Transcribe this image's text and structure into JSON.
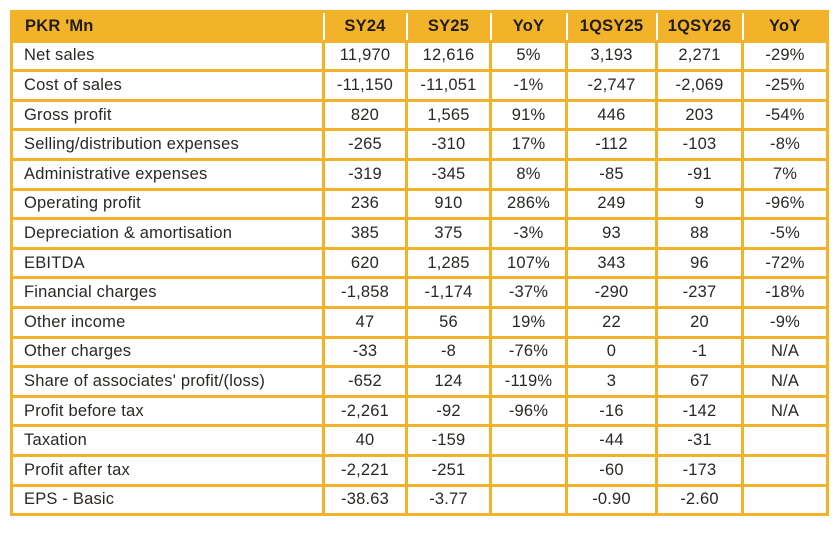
{
  "colors": {
    "accent_gold": "#F2B32A",
    "text_dark": "#2B2824",
    "header_text": "#201C17",
    "cell_background": "#FFFFFF"
  },
  "table": {
    "columns": [
      "PKR 'Mn",
      "SY24",
      "SY25",
      "YoY",
      "1QSY25",
      "1QSY26",
      "YoY"
    ],
    "rows": [
      [
        "Net sales",
        "11,970",
        "12,616",
        "5%",
        "3,193",
        "2,271",
        "-29%"
      ],
      [
        "Cost of sales",
        "-11,150",
        "-11,051",
        "-1%",
        "-2,747",
        "-2,069",
        "-25%"
      ],
      [
        "Gross profit",
        "820",
        "1,565",
        "91%",
        "446",
        "203",
        "-54%"
      ],
      [
        "Selling/distribution expenses",
        "-265",
        "-310",
        "17%",
        "-112",
        "-103",
        "-8%"
      ],
      [
        "Administrative expenses",
        "-319",
        "-345",
        "8%",
        "-85",
        "-91",
        "7%"
      ],
      [
        "Operating profit",
        "236",
        "910",
        "286%",
        "249",
        "9",
        "-96%"
      ],
      [
        "Depreciation & amortisation",
        "385",
        "375",
        "-3%",
        "93",
        "88",
        "-5%"
      ],
      [
        "EBITDA",
        "620",
        "1,285",
        "107%",
        "343",
        "96",
        "-72%"
      ],
      [
        "Financial charges",
        "-1,858",
        "-1,174",
        "-37%",
        "-290",
        "-237",
        "-18%"
      ],
      [
        "Other income",
        "47",
        "56",
        "19%",
        "22",
        "20",
        "-9%"
      ],
      [
        "Other charges",
        "-33",
        "-8",
        "-76%",
        "0",
        "-1",
        "N/A"
      ],
      [
        "Share of associates' profit/(loss)",
        "-652",
        "124",
        "-119%",
        "3",
        "67",
        "N/A"
      ],
      [
        "Profit before tax",
        "-2,261",
        "-92",
        "-96%",
        "-16",
        "-142",
        "N/A"
      ],
      [
        "Taxation",
        "40",
        "-159",
        "",
        "-44",
        "-31",
        ""
      ],
      [
        "Profit after tax",
        "-2,221",
        "-251",
        "",
        "-60",
        "-173",
        ""
      ],
      [
        "EPS - Basic",
        "-38.63",
        "-3.77",
        "",
        "-0.90",
        "-2.60",
        ""
      ]
    ]
  }
}
